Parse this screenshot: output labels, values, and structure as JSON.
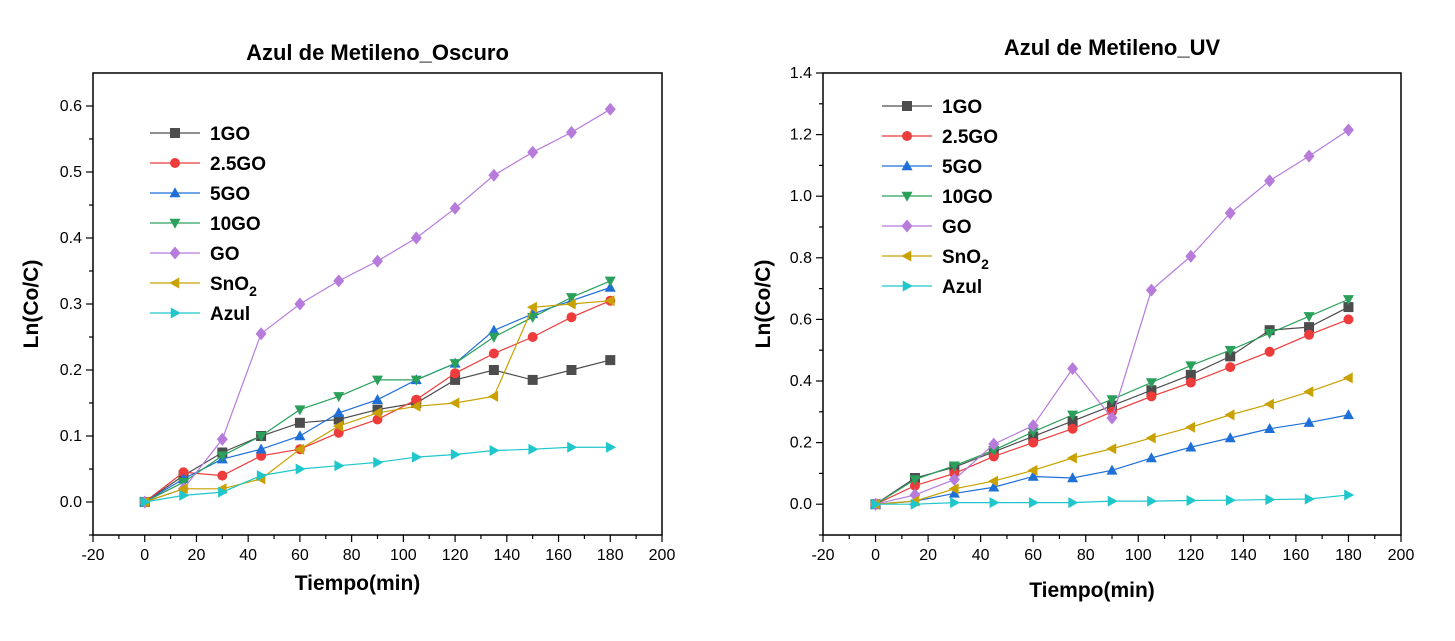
{
  "chart_data": [
    {
      "type": "line",
      "title": "Azul de Metileno_Oscuro",
      "xlabel": "Tiempo(min)",
      "ylabel": "Ln(Co/C)",
      "xlim": [
        -20,
        200
      ],
      "ylim": [
        -0.05,
        0.65
      ],
      "xticks": [
        -20,
        0,
        20,
        40,
        60,
        80,
        100,
        120,
        140,
        160,
        180,
        200
      ],
      "yticks": [
        0.0,
        0.1,
        0.2,
        0.3,
        0.4,
        0.5,
        0.6
      ],
      "legend_position": "top-left",
      "grid": false,
      "x": [
        0,
        15,
        30,
        45,
        60,
        75,
        90,
        105,
        120,
        135,
        150,
        165,
        180
      ],
      "series": [
        {
          "name": "1GO",
          "color": "#4d4d4d",
          "marker": "square",
          "values": [
            0.0,
            0.04,
            0.075,
            0.1,
            0.12,
            0.125,
            0.14,
            0.15,
            0.185,
            0.2,
            0.185,
            0.2,
            0.215
          ]
        },
        {
          "name": "2.5GO",
          "color": "#ee3b3b",
          "marker": "circle",
          "values": [
            0.0,
            0.045,
            0.04,
            0.07,
            0.08,
            0.105,
            0.125,
            0.155,
            0.195,
            0.225,
            0.25,
            0.28,
            0.305
          ]
        },
        {
          "name": "5GO",
          "color": "#1f6fd9",
          "marker": "triangle-up",
          "values": [
            0.0,
            0.035,
            0.065,
            0.08,
            0.1,
            0.135,
            0.155,
            0.185,
            0.21,
            0.26,
            0.285,
            0.305,
            0.325
          ]
        },
        {
          "name": "10GO",
          "color": "#2aa05a",
          "marker": "triangle-down",
          "values": [
            0.0,
            0.03,
            0.07,
            0.1,
            0.14,
            0.16,
            0.185,
            0.185,
            0.21,
            0.25,
            0.28,
            0.31,
            0.335
          ]
        },
        {
          "name": "GO",
          "color": "#b77bdc",
          "marker": "diamond",
          "values": [
            0.0,
            0.02,
            0.095,
            0.255,
            0.3,
            0.335,
            0.365,
            0.4,
            0.445,
            0.495,
            0.53,
            0.56,
            0.595
          ]
        },
        {
          "name": "SnO2",
          "name_main": "SnO",
          "name_sub": "2",
          "color": "#c9a100",
          "marker": "triangle-left",
          "values": [
            0.0,
            0.02,
            0.02,
            0.035,
            0.08,
            0.115,
            0.135,
            0.145,
            0.15,
            0.16,
            0.295,
            0.3,
            0.305
          ]
        },
        {
          "name": "Azul",
          "color": "#1fc7cc",
          "marker": "triangle-right",
          "values": [
            0.0,
            0.01,
            0.015,
            0.04,
            0.05,
            0.055,
            0.06,
            0.068,
            0.072,
            0.078,
            0.08,
            0.083,
            0.083
          ]
        }
      ]
    },
    {
      "type": "line",
      "title": "Azul de Metileno_UV",
      "xlabel": "Tiempo(min)",
      "ylabel": "Ln(Co/C)",
      "xlim": [
        -20,
        200
      ],
      "ylim": [
        -0.1,
        1.4
      ],
      "xticks": [
        -20,
        0,
        20,
        40,
        60,
        80,
        100,
        120,
        140,
        160,
        180,
        200
      ],
      "yticks": [
        0.0,
        0.2,
        0.4,
        0.6,
        0.8,
        1.0,
        1.2,
        1.4
      ],
      "legend_position": "top-left",
      "grid": false,
      "x": [
        0,
        15,
        30,
        45,
        60,
        75,
        90,
        105,
        120,
        135,
        150,
        165,
        180
      ],
      "series": [
        {
          "name": "1GO",
          "color": "#4d4d4d",
          "marker": "square",
          "values": [
            0.0,
            0.085,
            0.12,
            0.17,
            0.22,
            0.27,
            0.32,
            0.37,
            0.42,
            0.48,
            0.565,
            0.575,
            0.64
          ]
        },
        {
          "name": "2.5GO",
          "color": "#ee3b3b",
          "marker": "circle",
          "values": [
            0.0,
            0.06,
            0.1,
            0.155,
            0.2,
            0.245,
            0.3,
            0.35,
            0.395,
            0.445,
            0.495,
            0.55,
            0.6
          ]
        },
        {
          "name": "5GO",
          "color": "#1f6fd9",
          "marker": "triangle-up",
          "values": [
            0.0,
            0.01,
            0.035,
            0.055,
            0.09,
            0.085,
            0.11,
            0.15,
            0.185,
            0.215,
            0.245,
            0.265,
            0.29
          ]
        },
        {
          "name": "10GO",
          "color": "#2aa05a",
          "marker": "triangle-down",
          "values": [
            0.0,
            0.08,
            0.125,
            0.175,
            0.235,
            0.29,
            0.34,
            0.395,
            0.45,
            0.5,
            0.555,
            0.61,
            0.665
          ]
        },
        {
          "name": "GO",
          "color": "#b77bdc",
          "marker": "diamond",
          "values": [
            0.0,
            0.03,
            0.08,
            0.195,
            0.255,
            0.44,
            0.28,
            0.695,
            0.805,
            0.945,
            1.05,
            1.13,
            1.215
          ]
        },
        {
          "name": "SnO2",
          "name_main": "SnO",
          "name_sub": "2",
          "color": "#c9a100",
          "marker": "triangle-left",
          "values": [
            0.0,
            0.01,
            0.05,
            0.075,
            0.11,
            0.15,
            0.18,
            0.215,
            0.25,
            0.29,
            0.325,
            0.365,
            0.41
          ]
        },
        {
          "name": "Azul",
          "color": "#1fc7cc",
          "marker": "triangle-right",
          "values": [
            0.0,
            0.0,
            0.005,
            0.005,
            0.005,
            0.005,
            0.01,
            0.01,
            0.012,
            0.013,
            0.015,
            0.017,
            0.03
          ]
        }
      ]
    }
  ]
}
